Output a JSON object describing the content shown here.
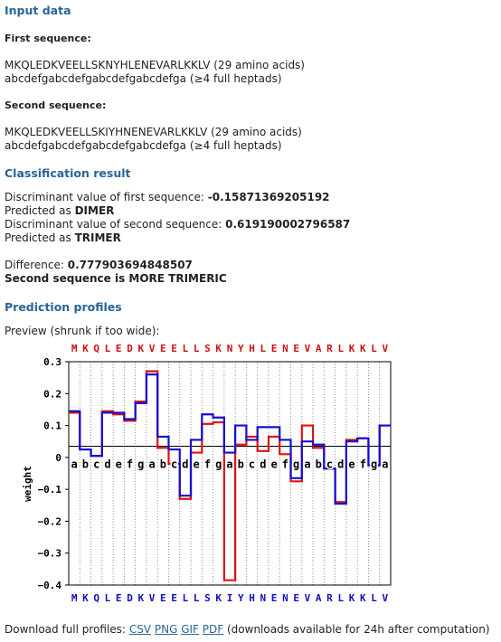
{
  "sections": {
    "input_data": "Input data",
    "classification": "Classification result",
    "profiles": "Prediction profiles"
  },
  "first": {
    "label": "First sequence:",
    "sequence": "MKQLEDKVEELLSKNYHLENEVARLKKLV",
    "seq_note": "(29 amino acids)",
    "registers": "abcdefgabcdefgabcdefgabcdefga",
    "reg_note": "(≥4 full heptads)"
  },
  "second": {
    "label": "Second sequence:",
    "sequence": "MKQLEDKVEELLSKIYHNENEVARLKKLV",
    "seq_note": "(29 amino acids)",
    "registers": "abcdefgabcdefgabcdefgabcdefga",
    "reg_note": "(≥4 full heptads)"
  },
  "result": {
    "disc1_label": "Discriminant value of first sequence:",
    "disc1_value": "-0.15871369205192",
    "pred1_label": "Predicted as",
    "pred1_value": "DIMER",
    "disc2_label": "Discriminant value of second sequence:",
    "disc2_value": "0.619190002796587",
    "pred2_label": "Predicted as",
    "pred2_value": "TRIMER",
    "diff_label": "Difference:",
    "diff_value": "0.777903694848507",
    "conclusion": "Second sequence is MORE TRIMERIC"
  },
  "preview_label": "Preview (shrunk if too wide):",
  "download": {
    "prefix": "Download full profiles:",
    "csv": "CSV",
    "png": "PNG",
    "gif": "GIF",
    "pdf": "PDF",
    "suffix": "(downloads available for 24h after computation)"
  },
  "chart_data": {
    "type": "line",
    "ylabel": "weight",
    "ylim": [
      -0.4,
      0.3
    ],
    "yticks": [
      0.3,
      0.2,
      0.1,
      0,
      -0.1,
      -0.2,
      -0.3,
      -0.4
    ],
    "ytick_labels": [
      "0.3",
      "0.2",
      "0.1",
      "0",
      "−0.1",
      "−0.2",
      "−0.3",
      "−0.4"
    ],
    "top_residues": [
      "M",
      "K",
      "Q",
      "L",
      "E",
      "D",
      "K",
      "V",
      "E",
      "E",
      "L",
      "L",
      "S",
      "K",
      "N",
      "Y",
      "H",
      "L",
      "E",
      "N",
      "E",
      "V",
      "A",
      "R",
      "L",
      "K",
      "K",
      "L",
      "V"
    ],
    "bottom_residues": [
      "M",
      "K",
      "Q",
      "L",
      "E",
      "D",
      "K",
      "V",
      "E",
      "E",
      "L",
      "L",
      "S",
      "K",
      "I",
      "Y",
      "H",
      "N",
      "E",
      "N",
      "E",
      "V",
      "A",
      "R",
      "L",
      "K",
      "K",
      "L",
      "V"
    ],
    "registers": [
      "a",
      "b",
      "c",
      "d",
      "e",
      "f",
      "g",
      "a",
      "b",
      "c",
      "d",
      "e",
      "f",
      "g",
      "a",
      "b",
      "c",
      "d",
      "e",
      "f",
      "g",
      "a",
      "b",
      "c",
      "d",
      "e",
      "f",
      "g",
      "a"
    ],
    "baseline": 0.035,
    "series": [
      {
        "color": "#e01010",
        "values": [
          0.14,
          0.025,
          0.005,
          0.145,
          0.135,
          0.115,
          0.175,
          0.27,
          0.03,
          -0.02,
          -0.13,
          0.015,
          0.105,
          0.11,
          -0.385,
          0.04,
          0.065,
          0.02,
          0.065,
          0.01,
          -0.075,
          0.1,
          0.03,
          -0.035,
          -0.14,
          0.055,
          0.06,
          -0.025,
          0.1
        ]
      },
      {
        "color": "#1010d0",
        "values": [
          0.145,
          0.025,
          0.005,
          0.14,
          0.14,
          0.12,
          0.17,
          0.26,
          0.065,
          0.025,
          -0.12,
          0.055,
          0.135,
          0.125,
          0.015,
          0.1,
          0.055,
          0.095,
          0.095,
          0.055,
          -0.065,
          0.05,
          0.04,
          -0.035,
          -0.145,
          0.05,
          0.06,
          -0.025,
          0.1
        ]
      }
    ]
  },
  "colors": {
    "heading": "#2a6496",
    "top_residue": "#d01010",
    "bottom_residue": "#1010c0",
    "link": "#2a6496"
  }
}
